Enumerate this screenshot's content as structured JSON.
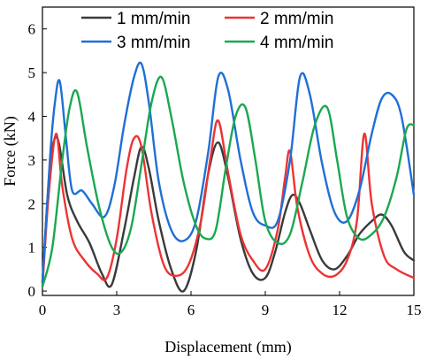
{
  "chart_data": {
    "type": "line",
    "title": "",
    "xlabel": "Displacement (mm)",
    "ylabel": "Force (kN)",
    "xlim": [
      0,
      15
    ],
    "ylim": [
      -0.1,
      6.5
    ],
    "xticks": [
      "0",
      "3",
      "6",
      "9",
      "12",
      "15"
    ],
    "yticks": [
      "0",
      "1",
      "2",
      "3",
      "4",
      "5",
      "6"
    ],
    "grid": false,
    "legend_position": "top",
    "series": [
      {
        "name": "1 mm/min",
        "color": "#3a3a3a",
        "x": [
          0,
          0.3,
          0.6,
          1.0,
          1.4,
          1.9,
          2.4,
          2.8,
          3.3,
          3.7,
          4.0,
          4.3,
          4.7,
          5.2,
          5.7,
          6.2,
          6.7,
          7.1,
          7.5,
          8.0,
          8.5,
          9.0,
          9.4,
          9.8,
          10.1,
          10.4,
          10.8,
          11.3,
          11.8,
          12.3,
          12.8,
          13.3,
          13.7,
          14.1,
          14.6,
          15.0
        ],
        "y": [
          0.2,
          2.8,
          3.5,
          2.2,
          1.6,
          1.1,
          0.4,
          0.15,
          1.4,
          2.6,
          3.3,
          2.8,
          1.6,
          0.5,
          0.0,
          0.9,
          2.7,
          3.4,
          2.6,
          1.2,
          0.4,
          0.3,
          0.9,
          1.8,
          2.2,
          2.0,
          1.4,
          0.7,
          0.5,
          0.8,
          1.3,
          1.6,
          1.75,
          1.5,
          0.9,
          0.7
        ]
      },
      {
        "name": "2 mm/min",
        "color": "#ee3333",
        "x": [
          0,
          0.25,
          0.55,
          0.8,
          1.2,
          1.7,
          2.2,
          2.6,
          3.0,
          3.4,
          3.7,
          4.0,
          4.4,
          4.9,
          5.4,
          5.9,
          6.4,
          6.8,
          7.1,
          7.5,
          8.0,
          8.5,
          9.0,
          9.5,
          9.8,
          10.0,
          10.3,
          10.8,
          11.3,
          11.8,
          12.3,
          12.7,
          13.0,
          13.3,
          13.8,
          14.3,
          15.0
        ],
        "y": [
          0.1,
          2.2,
          3.6,
          2.4,
          1.2,
          0.7,
          0.4,
          0.3,
          1.2,
          2.8,
          3.5,
          3.3,
          1.8,
          0.6,
          0.35,
          0.6,
          1.6,
          3.1,
          3.9,
          2.7,
          1.3,
          0.7,
          0.5,
          1.4,
          2.6,
          3.2,
          1.9,
          0.8,
          0.4,
          0.35,
          0.7,
          1.6,
          3.6,
          2.0,
          0.8,
          0.5,
          0.3
        ]
      },
      {
        "name": "3 mm/min",
        "color": "#1f6fd6",
        "x": [
          0,
          0.3,
          0.5,
          0.7,
          0.95,
          1.2,
          1.6,
          2.0,
          2.5,
          2.9,
          3.3,
          3.7,
          4.0,
          4.3,
          4.7,
          5.2,
          5.7,
          6.2,
          6.7,
          7.1,
          7.5,
          8.0,
          8.5,
          9.0,
          9.5,
          10.0,
          10.4,
          10.8,
          11.3,
          11.8,
          12.3,
          12.8,
          13.3,
          13.7,
          14.1,
          14.5,
          15.0
        ],
        "y": [
          0.2,
          3.0,
          4.3,
          4.8,
          3.5,
          2.3,
          2.3,
          2.0,
          1.7,
          2.4,
          3.8,
          4.9,
          5.2,
          4.3,
          2.5,
          1.4,
          1.15,
          1.6,
          3.2,
          4.9,
          4.6,
          3.0,
          1.8,
          1.5,
          1.6,
          3.0,
          4.9,
          4.5,
          2.9,
          1.8,
          1.6,
          2.3,
          3.6,
          4.4,
          4.5,
          4.0,
          2.2
        ]
      },
      {
        "name": "4 mm/min",
        "color": "#1aa84f",
        "x": [
          0,
          0.4,
          0.8,
          1.1,
          1.4,
          1.8,
          2.3,
          2.8,
          3.2,
          3.6,
          4.0,
          4.4,
          4.8,
          5.2,
          5.7,
          6.2,
          6.6,
          7.0,
          7.4,
          7.8,
          8.2,
          8.6,
          9.0,
          9.5,
          10.0,
          10.5,
          11.0,
          11.5,
          11.9,
          12.3,
          12.8,
          13.3,
          13.8,
          14.3,
          14.7,
          15.0
        ],
        "y": [
          0.1,
          1.0,
          3.0,
          4.2,
          4.55,
          3.3,
          1.9,
          1.0,
          0.9,
          1.5,
          2.9,
          4.3,
          4.9,
          4.0,
          2.5,
          1.5,
          1.2,
          1.4,
          2.8,
          4.0,
          4.2,
          3.0,
          1.6,
          1.1,
          1.3,
          2.5,
          3.8,
          4.2,
          3.0,
          1.7,
          1.2,
          1.3,
          1.7,
          2.6,
          3.7,
          3.8
        ]
      }
    ]
  }
}
